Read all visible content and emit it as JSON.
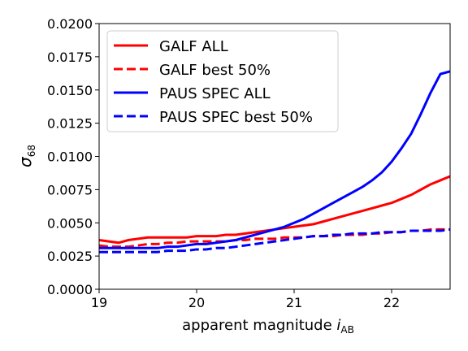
{
  "chart_data": {
    "type": "line",
    "xlabel": "apparent magnitude",
    "xlabel_symbol": "i",
    "xlabel_sub": "AB",
    "ylabel_symbol": "σ",
    "ylabel_sub": "68",
    "xlim": [
      19.0,
      22.6
    ],
    "ylim": [
      0.0,
      0.02
    ],
    "xticks": [
      19,
      20,
      21,
      22
    ],
    "xtick_labels": [
      "19",
      "20",
      "21",
      "22"
    ],
    "yticks": [
      0.0,
      0.0025,
      0.005,
      0.0075,
      0.01,
      0.0125,
      0.015,
      0.0175,
      0.02
    ],
    "ytick_labels": [
      "0.0000",
      "0.0025",
      "0.0050",
      "0.0075",
      "0.0100",
      "0.0125",
      "0.0150",
      "0.0175",
      "0.0200"
    ],
    "grid": false,
    "legend_position": "top-left",
    "series": [
      {
        "name": "GALF ALL",
        "color": "#ff0000",
        "dash": "solid",
        "x": [
          19.0,
          19.1,
          19.2,
          19.3,
          19.4,
          19.5,
          19.6,
          19.7,
          19.8,
          19.9,
          20.0,
          20.1,
          20.2,
          20.3,
          20.4,
          20.5,
          20.6,
          20.7,
          20.8,
          20.9,
          21.0,
          21.1,
          21.2,
          21.3,
          21.4,
          21.5,
          21.6,
          21.7,
          21.8,
          21.9,
          22.0,
          22.1,
          22.2,
          22.3,
          22.4,
          22.5,
          22.6
        ],
        "y": [
          0.0037,
          0.0036,
          0.0035,
          0.0037,
          0.0038,
          0.0039,
          0.0039,
          0.0039,
          0.0039,
          0.0039,
          0.004,
          0.004,
          0.004,
          0.0041,
          0.0041,
          0.0042,
          0.0043,
          0.0044,
          0.0045,
          0.0046,
          0.0047,
          0.0048,
          0.0049,
          0.0051,
          0.0053,
          0.0055,
          0.0057,
          0.0059,
          0.0061,
          0.0063,
          0.0065,
          0.0068,
          0.0071,
          0.0075,
          0.0079,
          0.0082,
          0.0085
        ]
      },
      {
        "name": "GALF best 50%",
        "color": "#ff0000",
        "dash": "dashed",
        "x": [
          19.0,
          19.1,
          19.2,
          19.3,
          19.4,
          19.5,
          19.6,
          19.7,
          19.8,
          19.9,
          20.0,
          20.1,
          20.2,
          20.3,
          20.4,
          20.5,
          20.6,
          20.7,
          20.8,
          20.9,
          21.0,
          21.1,
          21.2,
          21.3,
          21.4,
          21.5,
          21.6,
          21.7,
          21.8,
          21.9,
          22.0,
          22.1,
          22.2,
          22.3,
          22.4,
          22.5,
          22.6
        ],
        "y": [
          0.0033,
          0.0032,
          0.0032,
          0.0032,
          0.0033,
          0.0034,
          0.0034,
          0.0035,
          0.0035,
          0.0036,
          0.0036,
          0.0036,
          0.0036,
          0.0036,
          0.0037,
          0.0037,
          0.0038,
          0.0038,
          0.0038,
          0.0039,
          0.0039,
          0.0039,
          0.004,
          0.004,
          0.004,
          0.0041,
          0.0041,
          0.0041,
          0.0042,
          0.0042,
          0.0043,
          0.0043,
          0.0044,
          0.0044,
          0.0045,
          0.0045,
          0.0045
        ]
      },
      {
        "name": "PAUS SPEC ALL",
        "color": "#0000ff",
        "dash": "solid",
        "x": [
          19.0,
          19.1,
          19.2,
          19.3,
          19.4,
          19.5,
          19.6,
          19.7,
          19.8,
          19.9,
          20.0,
          20.1,
          20.2,
          20.3,
          20.4,
          20.5,
          20.6,
          20.7,
          20.8,
          20.9,
          21.0,
          21.1,
          21.2,
          21.3,
          21.4,
          21.5,
          21.6,
          21.7,
          21.8,
          21.9,
          22.0,
          22.1,
          22.2,
          22.3,
          22.4,
          22.5,
          22.6
        ],
        "y": [
          0.0031,
          0.0031,
          0.0031,
          0.0031,
          0.0031,
          0.0031,
          0.0031,
          0.0032,
          0.0032,
          0.0033,
          0.0034,
          0.0034,
          0.0035,
          0.0036,
          0.0037,
          0.0039,
          0.0041,
          0.0043,
          0.0045,
          0.0047,
          0.005,
          0.0053,
          0.0057,
          0.0061,
          0.0065,
          0.0069,
          0.0073,
          0.0077,
          0.0082,
          0.0088,
          0.0096,
          0.0106,
          0.0117,
          0.0132,
          0.0148,
          0.0162,
          0.0164
        ]
      },
      {
        "name": "PAUS SPEC best 50%",
        "color": "#0000ff",
        "dash": "dashed",
        "x": [
          19.0,
          19.1,
          19.2,
          19.3,
          19.4,
          19.5,
          19.6,
          19.7,
          19.8,
          19.9,
          20.0,
          20.1,
          20.2,
          20.3,
          20.4,
          20.5,
          20.6,
          20.7,
          20.8,
          20.9,
          21.0,
          21.1,
          21.2,
          21.3,
          21.4,
          21.5,
          21.6,
          21.7,
          21.8,
          21.9,
          22.0,
          22.1,
          22.2,
          22.3,
          22.4,
          22.5,
          22.6
        ],
        "y": [
          0.0028,
          0.0028,
          0.0028,
          0.0028,
          0.0028,
          0.0028,
          0.0028,
          0.0029,
          0.0029,
          0.0029,
          0.003,
          0.003,
          0.0031,
          0.0031,
          0.0032,
          0.0033,
          0.0034,
          0.0035,
          0.0036,
          0.0037,
          0.0038,
          0.0039,
          0.004,
          0.004,
          0.0041,
          0.0041,
          0.0042,
          0.0042,
          0.0042,
          0.0043,
          0.0043,
          0.0043,
          0.0044,
          0.0044,
          0.0044,
          0.0044,
          0.0045
        ]
      }
    ]
  }
}
